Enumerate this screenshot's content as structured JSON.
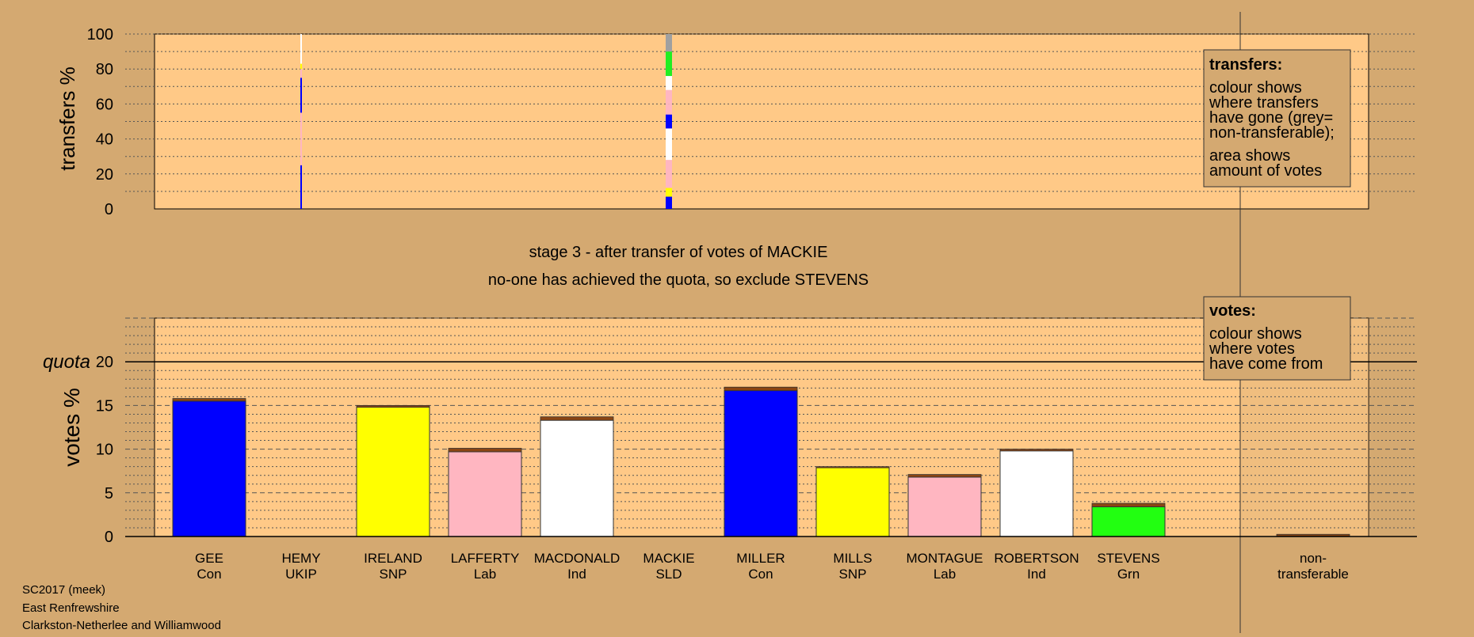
{
  "chart_data": [
    {
      "type": "bar",
      "name": "transfers",
      "ylabel": "transfers %",
      "ylim": [
        0,
        100
      ],
      "yticks": [
        0,
        20,
        40,
        60,
        80,
        100
      ],
      "categories": [
        "GEE",
        "HEMY",
        "IRELAND",
        "LAFFERTY",
        "MACDONALD",
        "MACKIE",
        "MILLER",
        "MILLS",
        "MONTAGUE",
        "ROBERTSON",
        "STEVENS"
      ],
      "transfer_columns": [
        {
          "candidate": "HEMY",
          "segments": [
            {
              "from": 0,
              "to": 25,
              "color": "#0000ff"
            },
            {
              "from": 25,
              "to": 55,
              "color": "#ffb6c1"
            },
            {
              "from": 55,
              "to": 75,
              "color": "#0000ff"
            },
            {
              "from": 75,
              "to": 80,
              "color": "#ffb6c1"
            },
            {
              "from": 80,
              "to": 83,
              "color": "#ffff00"
            },
            {
              "from": 83,
              "to": 100,
              "color": "#ffffff"
            }
          ]
        },
        {
          "candidate": "MACKIE",
          "segments": [
            {
              "from": 0,
              "to": 7,
              "color": "#0000ff"
            },
            {
              "from": 7,
              "to": 12,
              "color": "#ffff00"
            },
            {
              "from": 12,
              "to": 28,
              "color": "#ffb6c1"
            },
            {
              "from": 28,
              "to": 46,
              "color": "#ffffff"
            },
            {
              "from": 46,
              "to": 54,
              "color": "#0000ff"
            },
            {
              "from": 54,
              "to": 60,
              "color": "#ffb6c1"
            },
            {
              "from": 60,
              "to": 68,
              "color": "#ffb6c1"
            },
            {
              "from": 68,
              "to": 76,
              "color": "#ffffff"
            },
            {
              "from": 76,
              "to": 90,
              "color": "#22ee22"
            },
            {
              "from": 90,
              "to": 100,
              "color": "#a0a0a0"
            }
          ]
        }
      ]
    },
    {
      "type": "bar",
      "name": "votes",
      "ylabel": "votes %",
      "ylim": [
        0,
        25
      ],
      "yticks": [
        0,
        5,
        10,
        15,
        20
      ],
      "quota": 20,
      "quota_label": "quota",
      "categories": [
        "GEE",
        "HEMY",
        "IRELAND",
        "LAFFERTY",
        "MACDONALD",
        "MACKIE",
        "MILLER",
        "MILLS",
        "MONTAGUE",
        "ROBERTSON",
        "STEVENS",
        "non-transferable"
      ],
      "parties": [
        "Con",
        "UKIP",
        "SNP",
        "Lab",
        "Ind",
        "SLD",
        "Con",
        "SNP",
        "Lab",
        "Ind",
        "Grn",
        ""
      ],
      "base_values": [
        15.5,
        0,
        14.8,
        9.7,
        13.3,
        0,
        16.7,
        7.9,
        6.8,
        9.8,
        3.4,
        0
      ],
      "transfer_values": [
        0.3,
        0,
        0.2,
        0.4,
        0.4,
        0,
        0.4,
        0.1,
        0.3,
        0.2,
        0.4,
        0.25
      ],
      "colors": [
        "#0000ff",
        "#4b0082",
        "#ffff00",
        "#ffb6c1",
        "#ffffff",
        "#ffa500",
        "#0000ff",
        "#ffff00",
        "#ffb6c1",
        "#ffffff",
        "#22ff11",
        "#a0a0a0"
      ],
      "transfer_color": "#8b4513"
    }
  ],
  "stage_title": "stage 3 - after transfer of votes of MACKIE",
  "stage_subtitle": "no-one has achieved the quota, so exclude STEVENS",
  "legend_transfers": {
    "title": "transfers:",
    "lines": [
      "colour shows",
      "where transfers",
      "have gone (grey=",
      "non-transferable);",
      "area shows",
      "amount of votes"
    ]
  },
  "legend_votes": {
    "title": "votes:",
    "lines": [
      "colour shows",
      "where votes",
      "have come from"
    ]
  },
  "x_labels": [
    {
      "name": "GEE",
      "party": "Con"
    },
    {
      "name": "HEMY",
      "party": "UKIP"
    },
    {
      "name": "IRELAND",
      "party": "SNP"
    },
    {
      "name": "LAFFERTY",
      "party": "Lab"
    },
    {
      "name": "MACDONALD",
      "party": "Ind"
    },
    {
      "name": "MACKIE",
      "party": "SLD"
    },
    {
      "name": "MILLER",
      "party": "Con"
    },
    {
      "name": "MILLS",
      "party": "SNP"
    },
    {
      "name": "MONTAGUE",
      "party": "Lab"
    },
    {
      "name": "ROBERTSON",
      "party": "Ind"
    },
    {
      "name": "STEVENS",
      "party": "Grn"
    },
    {
      "name": "non-",
      "party": "transferable"
    }
  ],
  "footer": [
    "SC2017 (meek)",
    "East Renfrewshire",
    "Clarkston-Netherlee and Williamwood"
  ]
}
